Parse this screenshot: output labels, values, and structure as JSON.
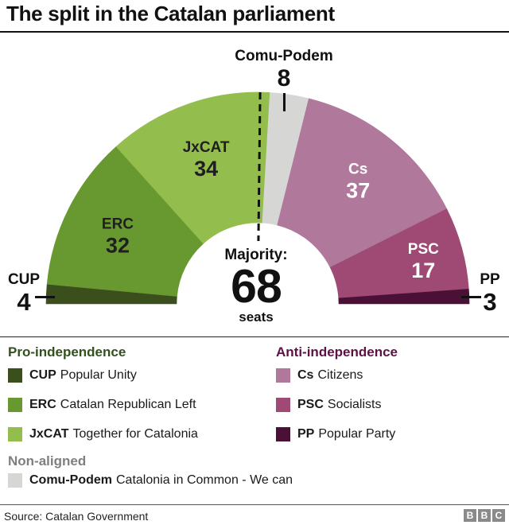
{
  "title": "The split in the Catalan parliament",
  "center": {
    "label": "Majority:",
    "unit": "seats"
  },
  "chart_data": {
    "type": "half-donut",
    "title": "The split in the Catalan parliament",
    "total_seats": 135,
    "majority_seats": 68,
    "parties": [
      {
        "abbr": "CUP",
        "name": "Popular Unity",
        "seats": 4,
        "color": "#3b4f1d",
        "group": "pro-independence",
        "label": "outside-left"
      },
      {
        "abbr": "ERC",
        "name": "Catalan Republican Left",
        "seats": 32,
        "color": "#689930",
        "group": "pro-independence",
        "label": "inside",
        "label_color": "#1f1f1f",
        "label_r": 197
      },
      {
        "abbr": "JxCAT",
        "name": "Together for Catalonia",
        "seats": 34,
        "color": "#93bd4c",
        "group": "pro-independence",
        "label": "inside",
        "label_color": "#1f1f1f",
        "label_r": 196
      },
      {
        "abbr": "Comu-Podem",
        "name": "Catalonia in Common - We can",
        "seats": 8,
        "color": "#d6d6d4",
        "group": "non-aligned",
        "label": "outside-top"
      },
      {
        "abbr": "Cs",
        "name": "Citizens",
        "seats": 37,
        "color": "#b0789b",
        "group": "anti-independence",
        "label": "inside",
        "label_color": "#ffffff",
        "label_r": 202
      },
      {
        "abbr": "PSC",
        "name": "Socialists",
        "seats": 17,
        "color": "#9e4a74",
        "group": "anti-independence",
        "label": "inside",
        "label_color": "#ffffff",
        "label_r": 216
      },
      {
        "abbr": "PP",
        "name": "Popular Party",
        "seats": 3,
        "color": "#4a1036",
        "group": "anti-independence",
        "label": "outside-right"
      }
    ]
  },
  "legend": {
    "groups": [
      {
        "title": "Pro-independence",
        "color": "#33511d",
        "items": [
          {
            "abbr": "CUP",
            "name": "Popular Unity",
            "color": "#3b4f1d"
          },
          {
            "abbr": "ERC",
            "name": "Catalan Republican Left",
            "color": "#689930"
          },
          {
            "abbr": "JxCAT",
            "name": "Together for Catalonia",
            "color": "#93bd4c"
          }
        ]
      },
      {
        "title": "Anti-independence",
        "color": "#5e1145",
        "items": [
          {
            "abbr": "Cs",
            "name": "Citizens",
            "color": "#b0789b"
          },
          {
            "abbr": "PSC",
            "name": "Socialists",
            "color": "#9e4a74"
          },
          {
            "abbr": "PP",
            "name": "Popular Party",
            "color": "#4a1036"
          }
        ]
      },
      {
        "title": "Non-aligned",
        "color": "#7f7f7f",
        "items": [
          {
            "abbr": "Comu-Podem",
            "name": "Catalonia in Common - We can",
            "color": "#d6d6d4"
          }
        ]
      }
    ]
  },
  "footer": {
    "source": "Source: Catalan Government",
    "logo": [
      "B",
      "B",
      "C"
    ]
  }
}
